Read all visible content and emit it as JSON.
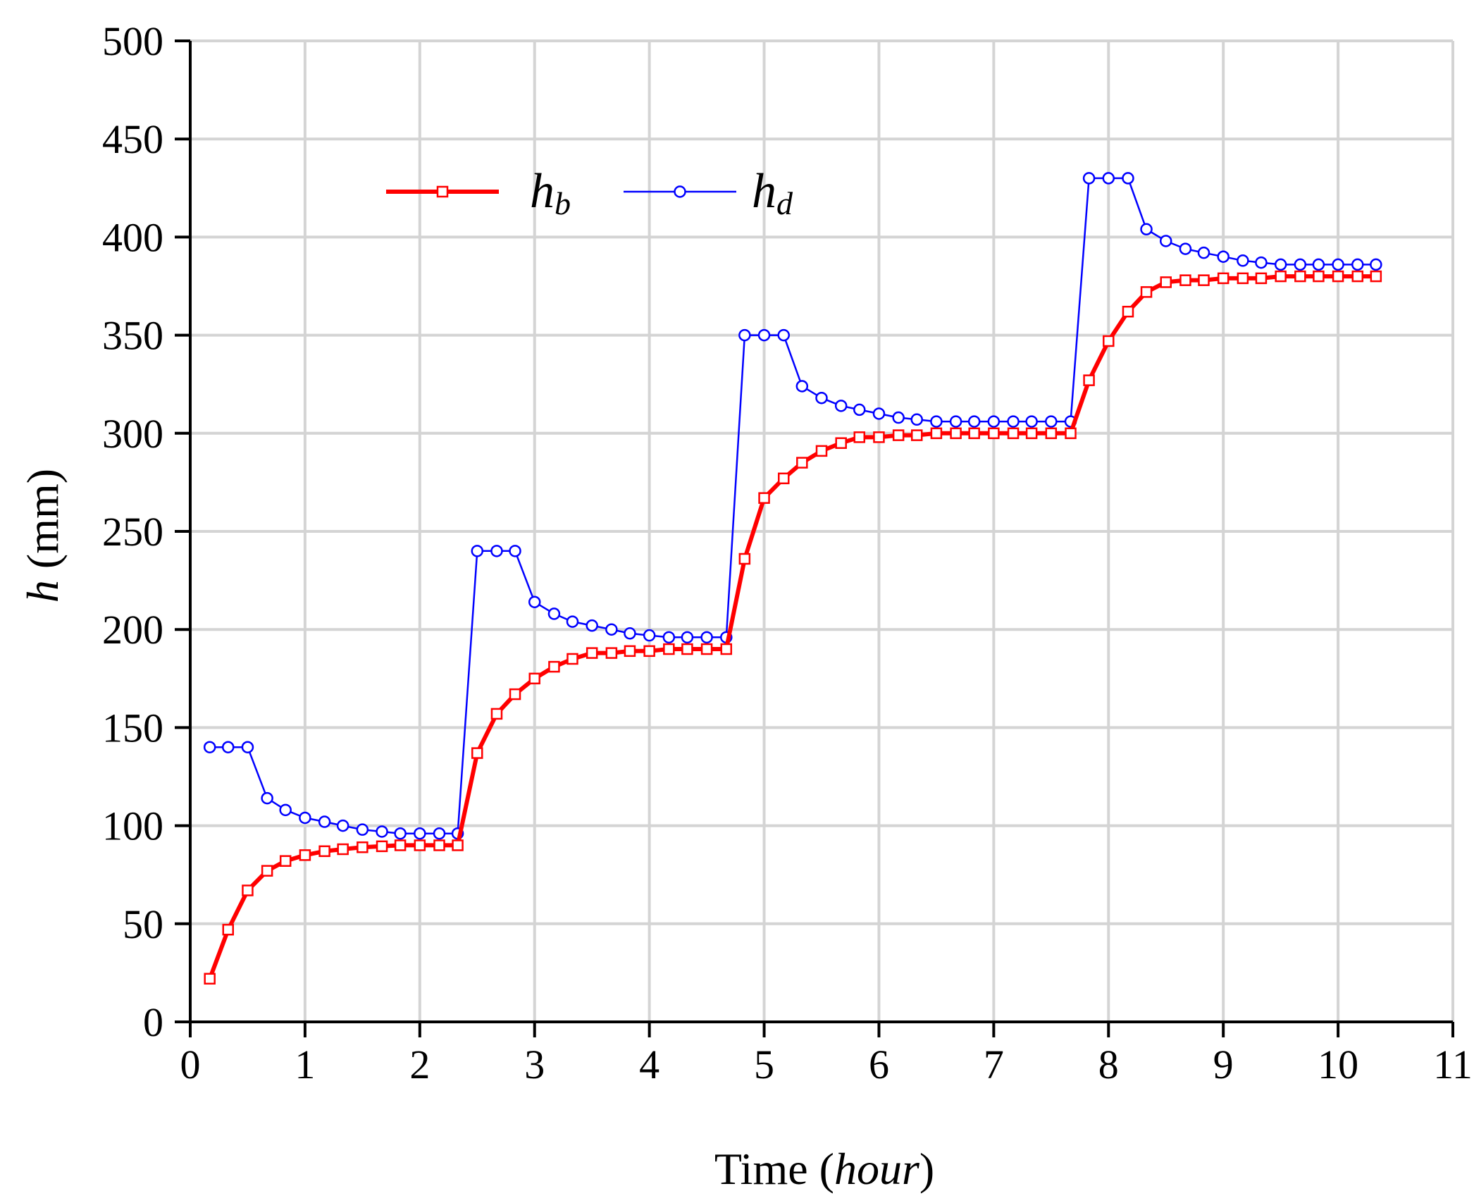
{
  "chart_data": {
    "type": "line",
    "title": "",
    "xlabel": {
      "prefix": "Time (",
      "italic": "hour",
      "suffix": ")"
    },
    "ylabel": {
      "italic": "h",
      "suffix": " (mm)"
    },
    "xlim": [
      0,
      11
    ],
    "ylim": [
      0,
      500
    ],
    "xticks": [
      0,
      1,
      2,
      3,
      4,
      5,
      6,
      7,
      8,
      9,
      10,
      11
    ],
    "yticks": [
      0,
      50,
      100,
      150,
      200,
      250,
      300,
      350,
      400,
      450,
      500
    ],
    "grid": true,
    "legend_position": "top-left",
    "series": [
      {
        "name": "h",
        "name_sub": "b",
        "color": "#ff0000",
        "marker": "square",
        "x": [
          0.17,
          0.33,
          0.5,
          0.67,
          0.83,
          1.0,
          1.17,
          1.33,
          1.5,
          1.67,
          1.83,
          2.0,
          2.17,
          2.33,
          2.5,
          2.67,
          2.83,
          3.0,
          3.17,
          3.33,
          3.5,
          3.67,
          3.83,
          4.0,
          4.17,
          4.33,
          4.5,
          4.67,
          4.83,
          5.0,
          5.17,
          5.33,
          5.5,
          5.67,
          5.83,
          6.0,
          6.17,
          6.33,
          6.5,
          6.67,
          6.83,
          7.0,
          7.17,
          7.33,
          7.5,
          7.67,
          7.83,
          8.0,
          8.17,
          8.33,
          8.5,
          8.67,
          8.83,
          9.0,
          9.17,
          9.33,
          9.5,
          9.67,
          9.83,
          10.0,
          10.17,
          10.33
        ],
        "y": [
          22,
          47,
          67,
          77,
          82,
          85,
          87,
          88,
          89,
          89.5,
          90,
          90,
          90,
          90,
          137,
          157,
          167,
          175,
          181,
          185,
          188,
          188,
          189,
          189,
          190,
          190,
          190,
          190,
          236,
          267,
          277,
          285,
          291,
          295,
          298,
          298,
          299,
          299,
          300,
          300,
          300,
          300,
          300,
          300,
          300,
          300,
          327,
          347,
          362,
          372,
          377,
          378,
          378,
          379,
          379,
          379,
          380,
          380,
          380,
          380,
          380,
          380
        ]
      },
      {
        "name": "h",
        "name_sub": "d",
        "color": "#0000ff",
        "marker": "circle",
        "x": [
          0.17,
          0.33,
          0.5,
          0.67,
          0.83,
          1.0,
          1.17,
          1.33,
          1.5,
          1.67,
          1.83,
          2.0,
          2.17,
          2.33,
          2.5,
          2.67,
          2.83,
          3.0,
          3.17,
          3.33,
          3.5,
          3.67,
          3.83,
          4.0,
          4.17,
          4.33,
          4.5,
          4.67,
          4.83,
          5.0,
          5.17,
          5.33,
          5.5,
          5.67,
          5.83,
          6.0,
          6.17,
          6.33,
          6.5,
          6.67,
          6.83,
          7.0,
          7.17,
          7.33,
          7.5,
          7.67,
          7.83,
          8.0,
          8.17,
          8.33,
          8.5,
          8.67,
          8.83,
          9.0,
          9.17,
          9.33,
          9.5,
          9.67,
          9.83,
          10.0,
          10.17,
          10.33
        ],
        "y": [
          140,
          140,
          140,
          114,
          108,
          104,
          102,
          100,
          98,
          97,
          96,
          96,
          96,
          96,
          240,
          240,
          240,
          214,
          208,
          204,
          202,
          200,
          198,
          197,
          196,
          196,
          196,
          196,
          350,
          350,
          350,
          324,
          318,
          314,
          312,
          310,
          308,
          307,
          306,
          306,
          306,
          306,
          306,
          306,
          306,
          306,
          430,
          430,
          430,
          404,
          398,
          394,
          392,
          390,
          388,
          387,
          386,
          386,
          386,
          386,
          386,
          386
        ]
      }
    ]
  }
}
